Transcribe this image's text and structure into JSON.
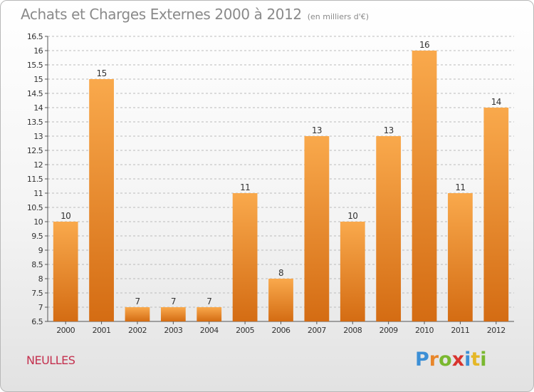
{
  "title": "Achats et Charges Externes 2000 à 2012",
  "subtitle": "(en milliers d'€)",
  "commune": "NEULLES",
  "logo": {
    "letters": [
      "P",
      "r",
      "o",
      "x",
      "i",
      "t",
      "i"
    ],
    "colors": [
      "#3c8fd6",
      "#e8862a",
      "#7ab82f",
      "#d8342e",
      "#3c8fd6",
      "#e5b727",
      "#7ab82f"
    ]
  },
  "colors": {
    "bar_top": "#f9a94c",
    "bar_bottom": "#d46c13",
    "grid": "#bbbbbb",
    "axis": "#555555",
    "text": "#333333"
  },
  "chart_data": {
    "type": "bar",
    "title": "Achats et Charges Externes 2000 à 2012",
    "xlabel": "",
    "ylabel": "",
    "categories": [
      "2000",
      "2001",
      "2002",
      "2003",
      "2004",
      "2005",
      "2006",
      "2007",
      "2008",
      "2009",
      "2010",
      "2011",
      "2012"
    ],
    "values": [
      10,
      15,
      7,
      7,
      7,
      11,
      8,
      13,
      10,
      13,
      16,
      11,
      14
    ],
    "data_labels": [
      "10",
      "15",
      "7",
      "7",
      "7",
      "11",
      "8",
      "13",
      "10",
      "13",
      "16",
      "11",
      "14"
    ],
    "ylim": [
      6.5,
      16.5
    ],
    "yticks": [
      6.5,
      7,
      7.5,
      8,
      8.5,
      9,
      9.5,
      10,
      10.5,
      11,
      11.5,
      12,
      12.5,
      13,
      13.5,
      14,
      14.5,
      15,
      15.5,
      16,
      16.5
    ],
    "ytick_labels": [
      "6.5",
      "7",
      "7.5",
      "8",
      "8.5",
      "9",
      "9.5",
      "10",
      "10.5",
      "11",
      "11.5",
      "12",
      "12.5",
      "13",
      "13.5",
      "14",
      "14.5",
      "15",
      "15.5",
      "16",
      "16.5"
    ],
    "grid": true
  }
}
